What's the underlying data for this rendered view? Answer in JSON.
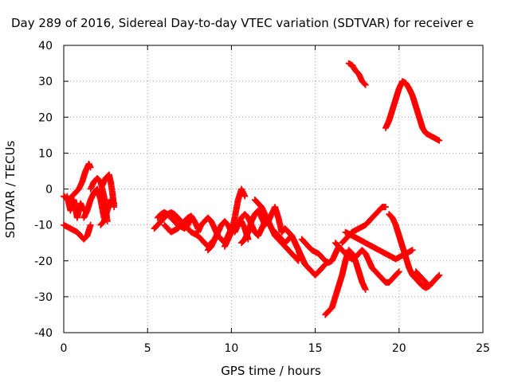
{
  "chart_data": {
    "type": "scatter",
    "title": "Day 289 of 2016, Sidereal Day-to-day VTEC variation (SDTVAR) for receiver e",
    "xlabel": "GPS time / hours",
    "ylabel": "SDTVAR / TECUs",
    "xlim": [
      0,
      25
    ],
    "ylim": [
      -40,
      40
    ],
    "xticks": [
      "0",
      "5",
      "10",
      "15",
      "20",
      "25"
    ],
    "yticks": [
      "-40",
      "-30",
      "-20",
      "-10",
      "0",
      "10",
      "20",
      "30",
      "40"
    ],
    "grid": true,
    "marker": "plus",
    "color": "#ff0000",
    "segments": [
      {
        "x": [
          0.0,
          0.2,
          0.4,
          0.6,
          0.8,
          1.0,
          1.2,
          1.4,
          1.6
        ],
        "y": [
          -10,
          -10.5,
          -11,
          -11.5,
          -12,
          -13,
          -14,
          -13,
          -10
        ]
      },
      {
        "x": [
          0.0,
          0.3,
          0.5,
          0.7,
          0.9,
          1.1,
          1.3,
          1.5,
          1.6
        ],
        "y": [
          -2,
          -3,
          -2,
          -1,
          0,
          2,
          5,
          7,
          6
        ]
      },
      {
        "x": [
          0.2,
          0.4,
          0.6,
          0.8,
          1.0,
          1.2
        ],
        "y": [
          -2,
          -6,
          -3,
          -8,
          -4,
          -6
        ]
      },
      {
        "x": [
          1.6,
          1.8,
          2.0,
          2.2,
          2.4,
          2.6
        ],
        "y": [
          0,
          2,
          3,
          2,
          -2,
          -9
        ]
      },
      {
        "x": [
          1.2,
          1.4,
          1.6,
          1.8,
          2.0,
          2.2,
          2.4
        ],
        "y": [
          -8,
          -6,
          -3,
          -1,
          0,
          -3,
          -8
        ]
      },
      {
        "x": [
          2.3,
          2.5,
          2.7,
          2.8,
          2.9,
          3.0
        ],
        "y": [
          1,
          3,
          4,
          2,
          -1,
          -5
        ]
      },
      {
        "x": [
          2.2,
          2.4,
          2.6,
          2.8,
          3.0
        ],
        "y": [
          -10,
          -9,
          -6,
          -3,
          -4
        ]
      },
      {
        "x": [
          5.4,
          5.6,
          5.8,
          6.0,
          6.2,
          6.4,
          6.6,
          6.8,
          7.0,
          7.2,
          7.4,
          7.6,
          7.8,
          8.0,
          8.2,
          8.4,
          8.6,
          8.8,
          9.0
        ],
        "y": [
          -11,
          -10,
          -9,
          -8,
          -7,
          -6.5,
          -7,
          -8,
          -9,
          -10,
          -11,
          -12,
          -12.5,
          -13,
          -14,
          -15,
          -16,
          -15,
          -14
        ]
      },
      {
        "x": [
          5.6,
          5.8,
          6.0,
          6.2,
          6.4,
          6.6,
          6.8,
          7.0,
          7.2,
          7.4,
          7.6
        ],
        "y": [
          -8,
          -7,
          -6.5,
          -7,
          -8,
          -9,
          -10,
          -10.5,
          -11,
          -10,
          -8
        ]
      },
      {
        "x": [
          6.0,
          6.2,
          6.4,
          6.6,
          6.8,
          7.0,
          7.2,
          7.4,
          7.6,
          7.8,
          8.0
        ],
        "y": [
          -10,
          -11,
          -12,
          -11.5,
          -11,
          -10,
          -9,
          -8,
          -7.5,
          -9,
          -11
        ]
      },
      {
        "x": [
          8.0,
          8.2,
          8.4,
          8.6,
          8.8,
          9.0,
          9.2,
          9.4,
          9.6,
          9.8,
          10.0
        ],
        "y": [
          -12,
          -10,
          -9,
          -8,
          -9,
          -11,
          -13,
          -14,
          -15,
          -13,
          -11
        ]
      },
      {
        "x": [
          8.6,
          8.8,
          9.0,
          9.2,
          9.4,
          9.6,
          9.8,
          10.0,
          10.2,
          10.4,
          10.6,
          10.8
        ],
        "y": [
          -17,
          -16,
          -14,
          -12,
          -10,
          -9,
          -10,
          -12,
          -8,
          -3,
          0,
          -2
        ]
      },
      {
        "x": [
          9.6,
          9.8,
          10.0,
          10.2,
          10.4,
          10.6,
          10.8,
          11.0
        ],
        "y": [
          -16,
          -14,
          -12,
          -11,
          -10,
          -9,
          -11,
          -14
        ]
      },
      {
        "x": [
          10.2,
          10.4,
          10.6,
          10.8,
          11.0,
          11.2,
          11.4,
          11.6,
          11.8,
          12.0
        ],
        "y": [
          -12,
          -10,
          -8,
          -7,
          -8,
          -10,
          -12,
          -13,
          -11,
          -9
        ]
      },
      {
        "x": [
          10.6,
          10.8,
          11.0,
          11.2,
          11.4,
          11.6,
          11.8,
          12.0,
          12.2,
          12.4,
          12.6,
          12.8,
          13.0
        ],
        "y": [
          -15,
          -14,
          -12,
          -9,
          -7,
          -6,
          -8,
          -10,
          -9,
          -7,
          -5,
          -8,
          -12
        ]
      },
      {
        "x": [
          11.4,
          11.6,
          11.8,
          12.0,
          12.2,
          12.4,
          12.6,
          12.8,
          13.0,
          13.2,
          13.4,
          13.6,
          13.8,
          14.0
        ],
        "y": [
          -3,
          -4,
          -5,
          -7,
          -9,
          -11,
          -13,
          -14,
          -15,
          -16,
          -17,
          -18,
          -19,
          -20
        ]
      },
      {
        "x": [
          12.0,
          12.2,
          12.4,
          12.6,
          12.8,
          13.0,
          13.2,
          13.4,
          13.6,
          13.8,
          14.0,
          14.2
        ],
        "y": [
          -8,
          -9,
          -11,
          -12,
          -13,
          -14,
          -15,
          -14,
          -13,
          -15,
          -17,
          -20
        ]
      },
      {
        "x": [
          13.0,
          13.2,
          13.4,
          13.6,
          13.8,
          14.0,
          14.2,
          14.4,
          14.6,
          14.8,
          15.0,
          15.2,
          15.4,
          15.6
        ],
        "y": [
          -12,
          -11,
          -12,
          -13,
          -15,
          -17,
          -19,
          -21,
          -22,
          -23,
          -24,
          -23,
          -22,
          -21
        ]
      },
      {
        "x": [
          14.2,
          14.4,
          14.6,
          14.8,
          15.0,
          15.2,
          15.4,
          15.6,
          15.8,
          16.0,
          16.2,
          16.4
        ],
        "y": [
          -14,
          -15,
          -16,
          -17,
          -17.5,
          -18,
          -19,
          -20,
          -20.5,
          -20,
          -18,
          -16
        ]
      },
      {
        "x": [
          15.6,
          15.8,
          16.0,
          16.2,
          16.4,
          16.6,
          16.8,
          17.0,
          17.2,
          17.4,
          17.6,
          17.8,
          18.0
        ],
        "y": [
          -35,
          -34,
          -33,
          -30,
          -27,
          -24,
          -20,
          -17,
          -18,
          -20,
          -23,
          -26,
          -28
        ]
      },
      {
        "x": [
          16.2,
          16.4,
          16.6,
          16.8,
          17.0,
          17.2,
          17.4,
          17.6,
          17.8,
          18.0,
          18.2,
          18.4,
          18.6,
          18.8,
          19.0,
          19.2,
          19.4,
          19.6,
          19.8,
          20.0
        ],
        "y": [
          -15,
          -16,
          -17,
          -18,
          -19,
          -19.5,
          -19,
          -18,
          -17,
          -18,
          -20,
          -22,
          -23,
          -24,
          -25,
          -26,
          -26,
          -25,
          -24,
          -23
        ]
      },
      {
        "x": [
          16.6,
          16.8,
          17.0,
          17.2,
          17.4,
          17.6,
          17.8,
          18.0,
          18.2,
          18.4,
          18.6,
          18.8,
          19.0,
          19.2
        ],
        "y": [
          -15,
          -14,
          -13,
          -12,
          -11.5,
          -11,
          -10.5,
          -10,
          -9,
          -8,
          -7,
          -6,
          -5,
          -5
        ]
      },
      {
        "x": [
          16.8,
          17.0,
          17.2,
          17.4,
          17.6,
          17.8,
          18.0,
          18.2,
          18.4,
          18.6,
          18.8,
          19.0,
          19.2,
          19.4,
          19.6,
          19.8,
          20.0,
          20.2,
          20.4,
          20.6,
          20.8
        ],
        "y": [
          -12,
          -12.5,
          -13,
          -13.5,
          -14,
          -14.5,
          -15,
          -15.5,
          -16,
          -16.5,
          -17,
          -17.5,
          -18,
          -18.5,
          -19,
          -19.5,
          -19,
          -18.5,
          -18,
          -17.5,
          -17
        ]
      },
      {
        "x": [
          19.4,
          19.6,
          19.8,
          20.0,
          20.2,
          20.4,
          20.6,
          20.8,
          21.0,
          21.2,
          21.4,
          21.6,
          21.8,
          22.0,
          22.2,
          22.4
        ],
        "y": [
          -7,
          -8,
          -10,
          -13,
          -16,
          -19,
          -22,
          -24,
          -25,
          -26,
          -27,
          -27.5,
          -27,
          -26,
          -25,
          -24
        ]
      },
      {
        "x": [
          21.0,
          21.2,
          21.4,
          21.6,
          21.8
        ],
        "y": [
          -23,
          -24,
          -25,
          -26,
          -27
        ]
      },
      {
        "x": [
          17.0,
          17.2,
          17.4,
          17.6,
          17.8,
          18.0
        ],
        "y": [
          35,
          34.5,
          33,
          32,
          30,
          29
        ]
      },
      {
        "x": [
          19.2,
          19.4,
          19.6,
          19.8,
          20.0,
          20.2,
          20.4,
          20.6,
          20.8,
          21.0,
          21.2,
          21.4,
          21.6,
          21.8,
          22.0,
          22.2,
          22.4
        ],
        "y": [
          17,
          19,
          22,
          25,
          28,
          30,
          29.5,
          28,
          26,
          23,
          20,
          17,
          15.5,
          15,
          14.5,
          14,
          13.5
        ]
      }
    ]
  }
}
